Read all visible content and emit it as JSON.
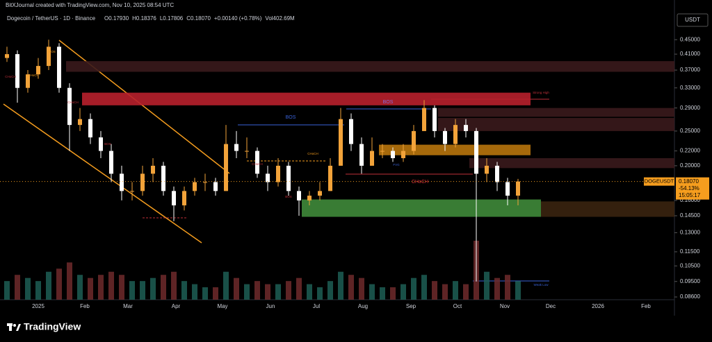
{
  "header": {
    "credit": "BitXJournal created with TradingView.com, Nov 10, 2025 08:54 UTC",
    "symbol": "Dogecoin / TetherUS · 1D · Binance",
    "ohlc": [
      "O0.17930",
      "H0.18376",
      "L0.17806",
      "C0.18070",
      "+0.00140 (+0.78%)",
      "Vol402.69M"
    ],
    "currency": "USDT"
  },
  "footer": {
    "brand": "TradingView"
  },
  "chart_data": {
    "type": "candlestick",
    "log_scale": true,
    "up_color": "#f2a33a",
    "down_color": "#ffffff",
    "ylim": [
      0.0845,
      0.536
    ],
    "yticks": [
      {
        "value": 0.45,
        "label": "0.45000"
      },
      {
        "value": 0.41,
        "label": "0.41000"
      },
      {
        "value": 0.37,
        "label": "0.37000"
      },
      {
        "value": 0.33,
        "label": "0.33000"
      },
      {
        "value": 0.29,
        "label": "0.29000"
      },
      {
        "value": 0.25,
        "label": "0.25000"
      },
      {
        "value": 0.22,
        "label": "0.22000"
      },
      {
        "value": 0.2,
        "label": "0.20000"
      },
      {
        "value": 0.16,
        "label": "0.16000"
      },
      {
        "value": 0.145,
        "label": "0.14500"
      },
      {
        "value": 0.13,
        "label": "0.13000"
      },
      {
        "value": 0.115,
        "label": "0.11500"
      },
      {
        "value": 0.105,
        "label": "0.10500"
      },
      {
        "value": 0.095,
        "label": "0.09500"
      },
      {
        "value": 0.086,
        "label": "0.08600"
      }
    ],
    "time_labels": [
      "2025",
      "Feb",
      "Mar",
      "Apr",
      "May",
      "Jun",
      "Jul",
      "Aug",
      "Sep",
      "Oct",
      "Nov",
      "Dec",
      "2026",
      "Feb"
    ],
    "open": [
      0.4,
      0.41,
      0.33,
      0.36,
      0.38,
      0.43,
      0.33,
      0.26,
      0.27,
      0.24,
      0.22,
      0.19,
      0.17,
      0.17,
      0.19,
      0.2,
      0.17,
      0.155,
      0.17,
      0.18,
      0.18,
      0.17,
      0.23,
      0.22,
      0.22,
      0.19,
      0.18,
      0.2,
      0.17,
      0.16,
      0.165,
      0.17,
      0.2,
      0.27,
      0.23,
      0.2,
      0.22,
      0.22,
      0.21,
      0.22,
      0.25,
      0.29,
      0.25,
      0.23,
      0.26,
      0.25,
      0.19,
      0.2,
      0.18,
      0.165
    ],
    "high": [
      0.43,
      0.42,
      0.37,
      0.4,
      0.45,
      0.44,
      0.34,
      0.29,
      0.28,
      0.25,
      0.23,
      0.2,
      0.18,
      0.2,
      0.21,
      0.205,
      0.175,
      0.175,
      0.185,
      0.19,
      0.185,
      0.26,
      0.25,
      0.24,
      0.225,
      0.2,
      0.21,
      0.205,
      0.175,
      0.17,
      0.18,
      0.21,
      0.29,
      0.28,
      0.24,
      0.24,
      0.23,
      0.225,
      0.23,
      0.26,
      0.305,
      0.295,
      0.255,
      0.27,
      0.27,
      0.255,
      0.21,
      0.205,
      0.185,
      0.18376
    ],
    "low": [
      0.39,
      0.3,
      0.32,
      0.35,
      0.37,
      0.32,
      0.22,
      0.25,
      0.23,
      0.21,
      0.18,
      0.16,
      0.16,
      0.165,
      0.18,
      0.165,
      0.14,
      0.15,
      0.165,
      0.17,
      0.165,
      0.17,
      0.21,
      0.21,
      0.185,
      0.17,
      0.175,
      0.165,
      0.145,
      0.155,
      0.16,
      0.17,
      0.2,
      0.22,
      0.19,
      0.2,
      0.21,
      0.205,
      0.205,
      0.215,
      0.25,
      0.24,
      0.22,
      0.225,
      0.24,
      0.095,
      0.18,
      0.17,
      0.155,
      0.155
    ],
    "close": [
      0.41,
      0.33,
      0.36,
      0.38,
      0.43,
      0.33,
      0.26,
      0.27,
      0.24,
      0.22,
      0.19,
      0.17,
      0.17,
      0.19,
      0.2,
      0.17,
      0.155,
      0.17,
      0.18,
      0.18,
      0.17,
      0.23,
      0.22,
      0.22,
      0.19,
      0.18,
      0.2,
      0.17,
      0.16,
      0.165,
      0.17,
      0.2,
      0.27,
      0.23,
      0.2,
      0.22,
      0.22,
      0.21,
      0.22,
      0.25,
      0.29,
      0.25,
      0.23,
      0.26,
      0.25,
      0.19,
      0.2,
      0.18,
      0.165,
      0.1807
    ],
    "volume": [
      30,
      40,
      35,
      30,
      45,
      50,
      60,
      40,
      35,
      40,
      45,
      40,
      30,
      30,
      35,
      40,
      45,
      30,
      25,
      20,
      20,
      45,
      35,
      25,
      30,
      25,
      25,
      30,
      35,
      25,
      20,
      30,
      45,
      40,
      35,
      25,
      20,
      20,
      25,
      35,
      40,
      30,
      25,
      30,
      25,
      95,
      45,
      35,
      40,
      30
    ],
    "zones": [
      {
        "top": 0.392,
        "bottom": 0.366,
        "color": "#3a1a1c"
      },
      {
        "top": 0.32,
        "bottom": 0.295,
        "color": "#b8202c"
      },
      {
        "top": 0.29,
        "bottom": 0.274,
        "color": "#3a1a1c"
      },
      {
        "top": 0.272,
        "bottom": 0.25,
        "color": "#3a1a1c"
      },
      {
        "top": 0.229,
        "bottom": 0.214,
        "color": "#b8740c"
      },
      {
        "top": 0.21,
        "bottom": 0.197,
        "color": "#3a1a1c"
      },
      {
        "top": 0.161,
        "bottom": 0.144,
        "color": "#3f8a3a"
      },
      {
        "top": 0.159,
        "bottom": 0.144,
        "color": "#3a2410"
      }
    ],
    "annotations": [
      "BOS",
      "CHoCH",
      "CHoCH",
      "CHoCH",
      "BOS",
      "BOS",
      "CHoCH",
      "CHoCH",
      "BOS",
      "BOS",
      "FVG",
      "CHoCH",
      "Strong High",
      "Weak Low"
    ],
    "last_price": {
      "symbol": "DOGEUSDT",
      "value": 0.1807,
      "label": "0.18070",
      "change": "-54.13%",
      "countdown": "15:05:17"
    }
  }
}
